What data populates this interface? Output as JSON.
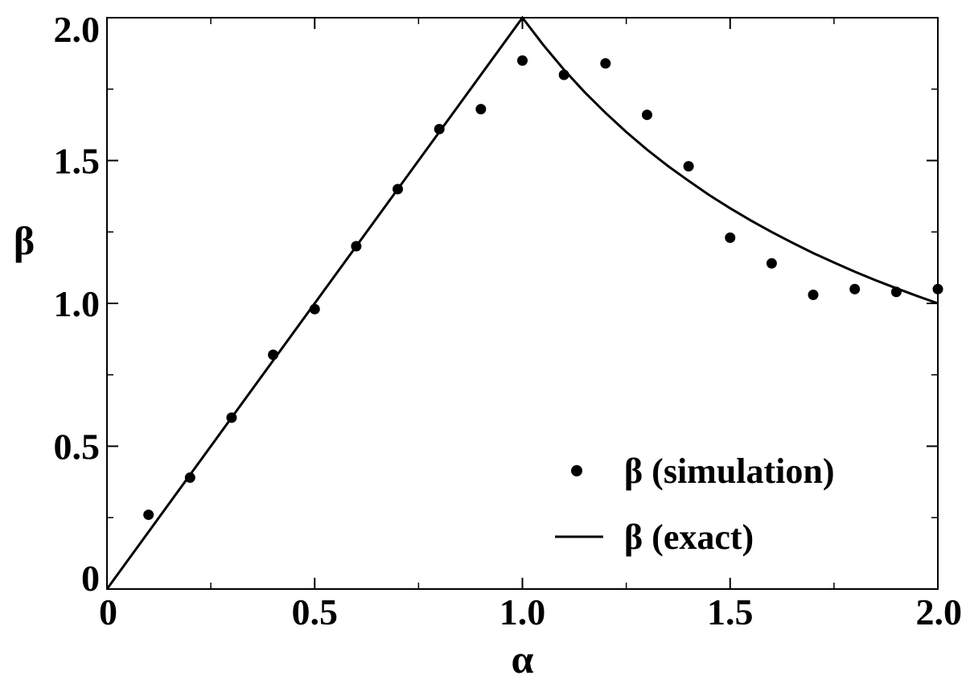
{
  "chart_data": {
    "type": "scatter",
    "xlabel": "α",
    "ylabel": "β",
    "xlim": [
      0,
      2
    ],
    "ylim": [
      0,
      2
    ],
    "grid": false,
    "legend_position": "bottom-right",
    "x_ticks": [
      {
        "value": 0,
        "label": "0"
      },
      {
        "value": 0.5,
        "label": "0.5"
      },
      {
        "value": 1.0,
        "label": "1.0"
      },
      {
        "value": 1.5,
        "label": "1.5"
      },
      {
        "value": 2.0,
        "label": "2.0"
      }
    ],
    "y_ticks": [
      {
        "value": 0,
        "label": "0"
      },
      {
        "value": 0.5,
        "label": "0.5"
      },
      {
        "value": 1.0,
        "label": "1.0"
      },
      {
        "value": 1.5,
        "label": "1.5"
      },
      {
        "value": 2.0,
        "label": "2.0"
      }
    ],
    "x_minor_ticks": [
      0.25,
      0.75,
      1.25,
      1.75
    ],
    "y_minor_ticks": [
      0.25,
      0.75,
      1.25,
      1.75
    ],
    "series": [
      {
        "name": "β (simulation)",
        "type": "scatter",
        "color": "#000000",
        "points": [
          {
            "x": 0.1,
            "y": 0.26
          },
          {
            "x": 0.2,
            "y": 0.39
          },
          {
            "x": 0.3,
            "y": 0.6
          },
          {
            "x": 0.4,
            "y": 0.82
          },
          {
            "x": 0.5,
            "y": 0.98
          },
          {
            "x": 0.6,
            "y": 1.2
          },
          {
            "x": 0.7,
            "y": 1.4
          },
          {
            "x": 0.8,
            "y": 1.61
          },
          {
            "x": 0.9,
            "y": 1.68
          },
          {
            "x": 1.0,
            "y": 1.85
          },
          {
            "x": 1.1,
            "y": 1.8
          },
          {
            "x": 1.2,
            "y": 1.84
          },
          {
            "x": 1.3,
            "y": 1.66
          },
          {
            "x": 1.4,
            "y": 1.48
          },
          {
            "x": 1.5,
            "y": 1.23
          },
          {
            "x": 1.6,
            "y": 1.14
          },
          {
            "x": 1.7,
            "y": 1.03
          },
          {
            "x": 1.8,
            "y": 1.05
          },
          {
            "x": 1.9,
            "y": 1.04
          },
          {
            "x": 2.0,
            "y": 1.05
          }
        ]
      },
      {
        "name": "β (exact)",
        "type": "line",
        "color": "#000000",
        "points": [
          {
            "x": 0,
            "y": 0
          },
          {
            "x": 1.0,
            "y": 2.0
          },
          {
            "x": 1.05,
            "y": 1.905
          },
          {
            "x": 1.1,
            "y": 1.818
          },
          {
            "x": 1.15,
            "y": 1.739
          },
          {
            "x": 1.2,
            "y": 1.667
          },
          {
            "x": 1.25,
            "y": 1.6
          },
          {
            "x": 1.3,
            "y": 1.538
          },
          {
            "x": 1.35,
            "y": 1.481
          },
          {
            "x": 1.4,
            "y": 1.429
          },
          {
            "x": 1.45,
            "y": 1.379
          },
          {
            "x": 1.5,
            "y": 1.333
          },
          {
            "x": 1.55,
            "y": 1.29
          },
          {
            "x": 1.6,
            "y": 1.25
          },
          {
            "x": 1.65,
            "y": 1.212
          },
          {
            "x": 1.7,
            "y": 1.176
          },
          {
            "x": 1.75,
            "y": 1.143
          },
          {
            "x": 1.8,
            "y": 1.111
          },
          {
            "x": 1.85,
            "y": 1.081
          },
          {
            "x": 1.9,
            "y": 1.053
          },
          {
            "x": 1.95,
            "y": 1.026
          },
          {
            "x": 2.0,
            "y": 1.0
          }
        ]
      }
    ]
  }
}
